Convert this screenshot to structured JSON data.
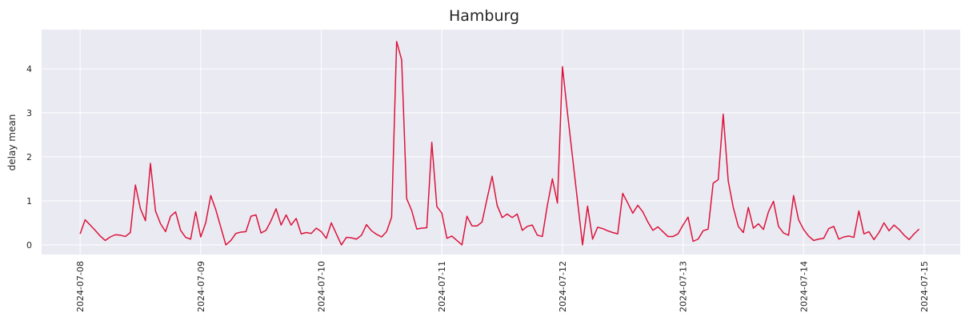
{
  "chart_data": {
    "type": "line",
    "title": "Hamburg",
    "ylabel": "delay mean",
    "x": [
      "2024-07-08T00:00",
      "2024-07-08T01:00",
      "2024-07-08T02:00",
      "2024-07-08T03:00",
      "2024-07-08T04:00",
      "2024-07-08T05:00",
      "2024-07-08T06:00",
      "2024-07-08T07:00",
      "2024-07-08T08:00",
      "2024-07-08T09:00",
      "2024-07-08T10:00",
      "2024-07-08T11:00",
      "2024-07-08T12:00",
      "2024-07-08T13:00",
      "2024-07-08T14:00",
      "2024-07-08T15:00",
      "2024-07-08T16:00",
      "2024-07-08T17:00",
      "2024-07-08T18:00",
      "2024-07-08T19:00",
      "2024-07-08T20:00",
      "2024-07-08T21:00",
      "2024-07-08T22:00",
      "2024-07-08T23:00",
      "2024-07-09T00:00",
      "2024-07-09T01:00",
      "2024-07-09T02:00",
      "2024-07-09T03:00",
      "2024-07-09T04:00",
      "2024-07-09T05:00",
      "2024-07-09T06:00",
      "2024-07-09T07:00",
      "2024-07-09T08:00",
      "2024-07-09T09:00",
      "2024-07-09T10:00",
      "2024-07-09T11:00",
      "2024-07-09T12:00",
      "2024-07-09T13:00",
      "2024-07-09T14:00",
      "2024-07-09T15:00",
      "2024-07-09T16:00",
      "2024-07-09T17:00",
      "2024-07-09T18:00",
      "2024-07-09T19:00",
      "2024-07-09T20:00",
      "2024-07-09T21:00",
      "2024-07-09T22:00",
      "2024-07-09T23:00",
      "2024-07-10T00:00",
      "2024-07-10T01:00",
      "2024-07-10T02:00",
      "2024-07-10T03:00",
      "2024-07-10T04:00",
      "2024-07-10T05:00",
      "2024-07-10T06:00",
      "2024-07-10T07:00",
      "2024-07-10T08:00",
      "2024-07-10T09:00",
      "2024-07-10T10:00",
      "2024-07-10T11:00",
      "2024-07-10T12:00",
      "2024-07-10T13:00",
      "2024-07-10T14:00",
      "2024-07-10T15:00",
      "2024-07-10T16:00",
      "2024-07-10T17:00",
      "2024-07-10T18:00",
      "2024-07-10T19:00",
      "2024-07-10T20:00",
      "2024-07-10T21:00",
      "2024-07-10T22:00",
      "2024-07-10T23:00",
      "2024-07-11T00:00",
      "2024-07-11T01:00",
      "2024-07-11T02:00",
      "2024-07-11T03:00",
      "2024-07-11T04:00",
      "2024-07-11T05:00",
      "2024-07-11T06:00",
      "2024-07-11T07:00",
      "2024-07-11T08:00",
      "2024-07-11T09:00",
      "2024-07-11T10:00",
      "2024-07-11T11:00",
      "2024-07-11T12:00",
      "2024-07-11T13:00",
      "2024-07-11T14:00",
      "2024-07-11T15:00",
      "2024-07-11T16:00",
      "2024-07-11T17:00",
      "2024-07-11T18:00",
      "2024-07-11T19:00",
      "2024-07-11T20:00",
      "2024-07-11T21:00",
      "2024-07-11T22:00",
      "2024-07-11T23:00",
      "2024-07-12T00:00",
      "2024-07-12T01:00",
      "2024-07-12T02:00",
      "2024-07-12T03:00",
      "2024-07-12T04:00",
      "2024-07-12T05:00",
      "2024-07-12T06:00",
      "2024-07-12T07:00",
      "2024-07-12T08:00",
      "2024-07-12T09:00",
      "2024-07-12T10:00",
      "2024-07-12T11:00",
      "2024-07-12T12:00",
      "2024-07-12T13:00",
      "2024-07-12T14:00",
      "2024-07-12T15:00",
      "2024-07-12T16:00",
      "2024-07-12T17:00",
      "2024-07-12T18:00",
      "2024-07-12T19:00",
      "2024-07-12T20:00",
      "2024-07-12T21:00",
      "2024-07-12T22:00",
      "2024-07-12T23:00",
      "2024-07-13T00:00",
      "2024-07-13T01:00",
      "2024-07-13T02:00",
      "2024-07-13T03:00",
      "2024-07-13T04:00",
      "2024-07-13T05:00",
      "2024-07-13T06:00",
      "2024-07-13T07:00",
      "2024-07-13T08:00",
      "2024-07-13T09:00",
      "2024-07-13T10:00",
      "2024-07-13T11:00",
      "2024-07-13T12:00",
      "2024-07-13T13:00",
      "2024-07-13T14:00",
      "2024-07-13T15:00",
      "2024-07-13T16:00",
      "2024-07-13T17:00",
      "2024-07-13T18:00",
      "2024-07-13T19:00",
      "2024-07-13T20:00",
      "2024-07-13T21:00",
      "2024-07-13T22:00",
      "2024-07-13T23:00",
      "2024-07-14T00:00",
      "2024-07-14T01:00",
      "2024-07-14T02:00",
      "2024-07-14T03:00",
      "2024-07-14T04:00",
      "2024-07-14T05:00",
      "2024-07-14T06:00",
      "2024-07-14T07:00",
      "2024-07-14T08:00",
      "2024-07-14T09:00",
      "2024-07-14T10:00",
      "2024-07-14T11:00",
      "2024-07-14T12:00",
      "2024-07-14T13:00",
      "2024-07-14T14:00",
      "2024-07-14T15:00",
      "2024-07-14T16:00",
      "2024-07-14T17:00",
      "2024-07-14T18:00",
      "2024-07-14T19:00",
      "2024-07-14T20:00",
      "2024-07-14T21:00",
      "2024-07-14T22:00",
      "2024-07-14T23:00"
    ],
    "series": [
      {
        "name": "delay mean",
        "color": "#dc143c",
        "values": [
          0.25,
          0.57,
          0.45,
          0.33,
          0.2,
          0.1,
          0.18,
          0.23,
          0.22,
          0.19,
          0.28,
          1.36,
          0.82,
          0.55,
          1.85,
          0.77,
          0.48,
          0.3,
          0.65,
          0.75,
          0.33,
          0.17,
          0.13,
          0.75,
          0.18,
          0.5,
          1.12,
          0.8,
          0.4,
          0.0,
          0.1,
          0.26,
          0.29,
          0.3,
          0.65,
          0.68,
          0.27,
          0.33,
          0.55,
          0.82,
          0.45,
          0.68,
          0.45,
          0.6,
          0.25,
          0.28,
          0.26,
          0.38,
          0.3,
          0.15,
          0.5,
          0.25,
          0.0,
          0.17,
          0.16,
          0.13,
          0.22,
          0.46,
          0.32,
          0.24,
          0.18,
          0.3,
          0.63,
          4.62,
          4.2,
          1.05,
          0.78,
          0.36,
          0.38,
          0.39,
          2.33,
          0.87,
          0.72,
          0.15,
          0.2,
          0.1,
          0.0,
          0.65,
          0.43,
          0.43,
          0.52,
          1.05,
          1.56,
          0.9,
          0.62,
          0.7,
          0.62,
          0.7,
          0.33,
          0.42,
          0.45,
          0.22,
          0.19,
          0.9,
          1.5,
          0.95,
          4.05,
          3.0,
          2.0,
          1.0,
          0.0,
          0.88,
          0.13,
          0.4,
          0.37,
          0.32,
          0.28,
          0.25,
          1.17,
          0.95,
          0.72,
          0.9,
          0.75,
          0.52,
          0.33,
          0.41,
          0.3,
          0.19,
          0.19,
          0.25,
          0.45,
          0.63,
          0.08,
          0.13,
          0.32,
          0.36,
          1.4,
          1.48,
          2.97,
          1.45,
          0.85,
          0.42,
          0.28,
          0.85,
          0.38,
          0.48,
          0.35,
          0.75,
          0.99,
          0.42,
          0.27,
          0.22,
          1.12,
          0.57,
          0.35,
          0.2,
          0.1,
          0.13,
          0.15,
          0.37,
          0.42,
          0.13,
          0.18,
          0.2,
          0.17,
          0.77,
          0.25,
          0.3,
          0.12,
          0.28,
          0.5,
          0.32,
          0.45,
          0.35,
          0.22,
          0.12,
          0.25,
          0.36
        ]
      }
    ],
    "xlim": [
      "2024-07-07T16:20",
      "2024-07-15T07:10"
    ],
    "xticks": [
      "2024-07-08",
      "2024-07-09",
      "2024-07-10",
      "2024-07-11",
      "2024-07-12",
      "2024-07-13",
      "2024-07-14",
      "2024-07-15"
    ],
    "ylim": [
      -0.22,
      4.89
    ],
    "yticks": [
      0,
      1,
      2,
      3,
      4
    ],
    "grid": true
  }
}
